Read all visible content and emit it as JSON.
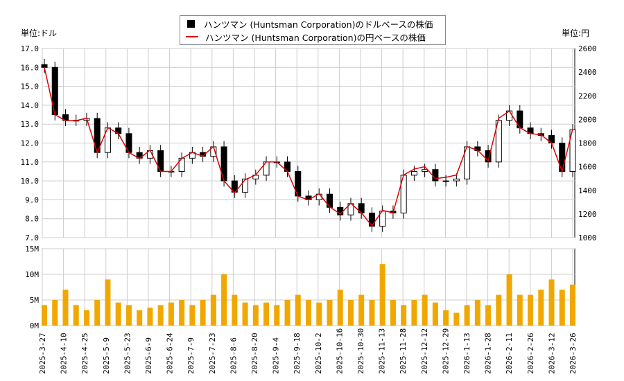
{
  "units": {
    "left": "単位:ドル",
    "right": "単位:円"
  },
  "legend": {
    "usd": "ハンツマン (Huntsman Corporation)のドルベースの株価",
    "jpy": "ハンツマン (Huntsman Corporation)の円ベースの株価"
  },
  "colors": {
    "candle_down": "#000000",
    "candle_up": "#ffffff",
    "yen_line": "#e00000",
    "volume": "#f0a800",
    "grid": "#cccccc"
  },
  "chart_data": [
    {
      "type": "candlestick+line",
      "grid": true,
      "legend_position": "top-center",
      "y_left": {
        "min": 7.0,
        "max": 17.0,
        "ticks": [
          "7.0",
          "8.0",
          "9.0",
          "10.0",
          "11.0",
          "12.0",
          "13.0",
          "14.0",
          "15.0",
          "16.0",
          "17.0"
        ]
      },
      "y_right": {
        "min": 1000,
        "max": 2600,
        "ticks": [
          "1000",
          "1200",
          "1400",
          "1600",
          "1800",
          "2000",
          "2200",
          "2400",
          "2600"
        ]
      },
      "x_ticks": [
        "2025-3-27",
        "2025-4-10",
        "2025-4-25",
        "2025-5-9",
        "2025-5-23",
        "2025-6-9",
        "2025-6-24",
        "2025-7-9",
        "2025-7-23",
        "2025-8-6",
        "2025-8-20",
        "2025-9-4",
        "2025-9-18",
        "2025-10-2",
        "2025-10-16",
        "2025-10-30",
        "2025-11-13",
        "2025-11-28",
        "2025-12-12",
        "2025-12-29",
        "2026-1-13",
        "2026-1-28",
        "2026-2-11",
        "2026-2-26",
        "2026-3-12",
        "2026-3-26"
      ],
      "usd_close_weekly": [
        16.0,
        13.5,
        13.2,
        13.2,
        13.3,
        11.5,
        12.8,
        12.5,
        11.5,
        11.2,
        11.6,
        10.5,
        10.5,
        11.2,
        11.5,
        11.3,
        11.8,
        10.0,
        9.4,
        10.1,
        10.3,
        11.0,
        11.0,
        10.5,
        9.2,
        9.0,
        9.3,
        8.6,
        8.2,
        8.8,
        8.3,
        7.6,
        8.4,
        8.3,
        10.3,
        10.5,
        10.6,
        10.0,
        10.0,
        10.1,
        11.8,
        11.6,
        11.0,
        13.2,
        13.7,
        12.8,
        12.5,
        12.4,
        12.0,
        10.5,
        12.7
      ],
      "jpy_close_weekly": [
        2440,
        2040,
        1990,
        1990,
        2010,
        1720,
        1930,
        1880,
        1720,
        1670,
        1740,
        1560,
        1560,
        1670,
        1720,
        1690,
        1770,
        1480,
        1380,
        1490,
        1530,
        1640,
        1640,
        1560,
        1350,
        1320,
        1370,
        1260,
        1200,
        1290,
        1210,
        1100,
        1230,
        1210,
        1530,
        1580,
        1600,
        1500,
        1510,
        1530,
        1770,
        1740,
        1650,
        2010,
        2070,
        1930,
        1880,
        1870,
        1800,
        1560,
        1920
      ]
    },
    {
      "type": "bar",
      "y": {
        "min": 0,
        "max": 15,
        "unit": "M",
        "ticks": [
          "0M",
          "5M",
          "10M",
          "15M"
        ]
      },
      "volume_millions_weekly": [
        4,
        5,
        7,
        4,
        3,
        5,
        9,
        4.5,
        4,
        3,
        3.5,
        4,
        4.5,
        5,
        4,
        5,
        6,
        10,
        6,
        4.5,
        4,
        4.5,
        4,
        5,
        6,
        5,
        4.5,
        5,
        7,
        5,
        6,
        5,
        12,
        5,
        4,
        5,
        6,
        4.5,
        3,
        2.5,
        4,
        5,
        4,
        6,
        10,
        6,
        6,
        7,
        9,
        7,
        8
      ]
    }
  ]
}
